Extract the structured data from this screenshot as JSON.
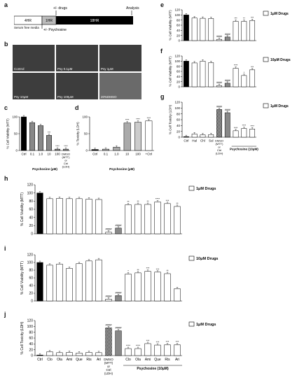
{
  "panels": {
    "a": "a",
    "b": "b",
    "c": "c",
    "d": "d",
    "e": "e",
    "f": "f",
    "g": "g",
    "h": "h",
    "i": "i",
    "j": "j"
  },
  "timeline": {
    "drugs": "+/- drugs",
    "analysis": "Analysis",
    "seg1": "4HR",
    "seg2": "1HR",
    "seg3": "18HR",
    "serum": "Serum free\nmedia",
    "psychosine": "+/- Psychosine"
  },
  "micrographs": [
    "Control",
    "Psy 0.1μM",
    "Psy 1μM",
    "Psy 10μM",
    "Psy 100μM",
    "20%DMSO"
  ],
  "colors": {
    "black": "#000000",
    "dmso": "#9a9a9a",
    "white": "#ffffff"
  },
  "chart_data": [
    {
      "id": "c",
      "type": "bar",
      "ylabel": "% Cell Viability (MTT)",
      "xlabel": "Psychosine (μM)",
      "ylim": [
        0,
        100
      ],
      "yticks": [
        "0",
        "50",
        "100"
      ],
      "categories": [
        "Ctrl",
        "0.1",
        "1.0",
        "10",
        "100",
        "DMSO (20%)"
      ],
      "values": [
        100,
        83,
        74,
        45,
        4,
        4
      ],
      "fills": [
        "#000",
        "#888",
        "#888",
        "#888",
        "#888",
        "#888"
      ],
      "sig": [
        "",
        "",
        "",
        "***",
        "****",
        "****"
      ]
    },
    {
      "id": "d",
      "type": "bar",
      "ylabel": "% Toxicity (LDH)",
      "xlabel": "Psychosine (μM)",
      "ylim": [
        0,
        100
      ],
      "yticks": [
        "0",
        "50",
        "100"
      ],
      "categories": [
        "Ctrl",
        "0.1",
        "1.0",
        "10",
        "100",
        "+Ctrl"
      ],
      "values": [
        3,
        4,
        10,
        82,
        84,
        88
      ],
      "fills": [
        "#000",
        "#aaa",
        "#aaa",
        "#aaa",
        "#ccc",
        "#fff"
      ],
      "sig": [
        "",
        "",
        "",
        "****",
        "****",
        "****"
      ]
    },
    {
      "id": "e",
      "type": "bar",
      "ylabel": "% Cell Viability (MTT)",
      "legend": "1μM Drugs",
      "ylim": [
        0,
        120
      ],
      "yticks": [
        "0",
        "20",
        "40",
        "60",
        "80",
        "100",
        "120"
      ],
      "values": [
        100,
        88,
        87,
        86,
        5,
        14,
        75,
        75,
        78
      ],
      "fills": [
        "#000",
        "#fff",
        "#fff",
        "#fff",
        "#fff",
        "#888",
        "#fff",
        "#fff",
        "#fff"
      ],
      "sig": [
        "",
        "",
        "",
        "",
        "####",
        "####",
        "***",
        "**",
        "***"
      ]
    },
    {
      "id": "f",
      "type": "bar",
      "ylabel": "% Cell Viability (MTT)",
      "legend": "10μM Drugs",
      "ylim": [
        0,
        120
      ],
      "yticks": [
        "0",
        "20",
        "40",
        "60",
        "80",
        "100",
        "120"
      ],
      "values": [
        100,
        93,
        100,
        94,
        5,
        14,
        72,
        44,
        66
      ],
      "fills": [
        "#000",
        "#fff",
        "#fff",
        "#fff",
        "#fff",
        "#888",
        "#fff",
        "#fff",
        "#fff"
      ],
      "sig": [
        "",
        "",
        "",
        "",
        "####",
        "####",
        "****",
        "*",
        "***"
      ]
    },
    {
      "id": "g",
      "type": "bar",
      "ylabel": "% Cell Toxicity (LDH)",
      "legend": "1μM Drugs",
      "ylim": [
        0,
        120
      ],
      "yticks": [
        "0",
        "20",
        "40",
        "60",
        "80",
        "100",
        "120"
      ],
      "categories": [
        "Ctrl",
        "Hal",
        "Chl",
        "Sul",
        "DMSO (MTT) or Ctrl (LDH)",
        "",
        "",
        "",
        ""
      ],
      "group_label": "Psychosine (10μM)",
      "values": [
        2,
        11,
        8,
        9,
        95,
        84,
        22,
        30,
        28
      ],
      "fills": [
        "#000",
        "#fff",
        "#fff",
        "#fff",
        "check",
        "#888",
        "#fff",
        "#fff",
        "#fff"
      ],
      "sig": [
        "",
        "",
        "",
        "",
        "####",
        "####",
        "****",
        "****",
        "****"
      ]
    },
    {
      "id": "h",
      "type": "bar",
      "ylabel": "% Cell Viability (MTT)",
      "legend": "1μM Drugs",
      "ylim": [
        0,
        120
      ],
      "yticks": [
        "0",
        "20",
        "40",
        "60",
        "80",
        "100",
        "120"
      ],
      "values": [
        100,
        86,
        87,
        86,
        86,
        85,
        84,
        4,
        14,
        71,
        72,
        72,
        78,
        74,
        67
      ],
      "fills": [
        "#000",
        "#fff",
        "#fff",
        "#fff",
        "#fff",
        "#fff",
        "#fff",
        "#fff",
        "#888",
        "#fff",
        "#fff",
        "#fff",
        "#fff",
        "#fff",
        "#fff"
      ],
      "sig": [
        "",
        "",
        "",
        "",
        "",
        "",
        "",
        "####",
        "####",
        "**",
        "**",
        "**",
        "****",
        "***",
        "**"
      ]
    },
    {
      "id": "i",
      "type": "bar",
      "ylabel": "% Cell Viability (MTT)",
      "legend": "10μM Drugs",
      "ylim": [
        0,
        120
      ],
      "yticks": [
        "0",
        "20",
        "40",
        "60",
        "80",
        "100",
        "120"
      ],
      "values": [
        100,
        93,
        96,
        85,
        97,
        104,
        107,
        5,
        14,
        70,
        73,
        77,
        75,
        71,
        32
      ],
      "fills": [
        "#000",
        "#fff",
        "#fff",
        "#fff",
        "#fff",
        "#fff",
        "#fff",
        "#fff",
        "#888",
        "#fff",
        "#fff",
        "#fff",
        "#fff",
        "#fff",
        "#fff"
      ],
      "sig": [
        "",
        "",
        "",
        "",
        "",
        "",
        "",
        "####",
        "####",
        "*",
        "**",
        "***",
        "***",
        "**",
        ""
      ]
    },
    {
      "id": "j",
      "type": "bar",
      "ylabel": "% Cell Toxicity (LDH)",
      "legend": "1μM Drugs",
      "ylim": [
        0,
        120
      ],
      "yticks": [
        "0",
        "20",
        "40",
        "60",
        "80",
        "100",
        "120"
      ],
      "categories": [
        "Ctrl",
        "Clo",
        "Ola",
        "Ami",
        "Que",
        "Ris",
        "Ari",
        "DMSO (MTT) or Ctrl (LDH)",
        "",
        "Clo",
        "Ola",
        "Ami",
        "Que",
        "Ris",
        "Ari"
      ],
      "group_label": "Psychosine (10μM)",
      "values": [
        2,
        13,
        10,
        11,
        9,
        11,
        10,
        95,
        85,
        24,
        24,
        41,
        36,
        37,
        37
      ],
      "fills": [
        "#000",
        "#fff",
        "#fff",
        "#fff",
        "#fff",
        "#fff",
        "#fff",
        "check",
        "#888",
        "#fff",
        "#fff",
        "#fff",
        "#fff",
        "#fff",
        "#fff"
      ],
      "sig": [
        "",
        "",
        "",
        "",
        "",
        "",
        "",
        "####",
        "####",
        "****",
        "****",
        "***",
        "***",
        "***",
        "***"
      ]
    }
  ]
}
